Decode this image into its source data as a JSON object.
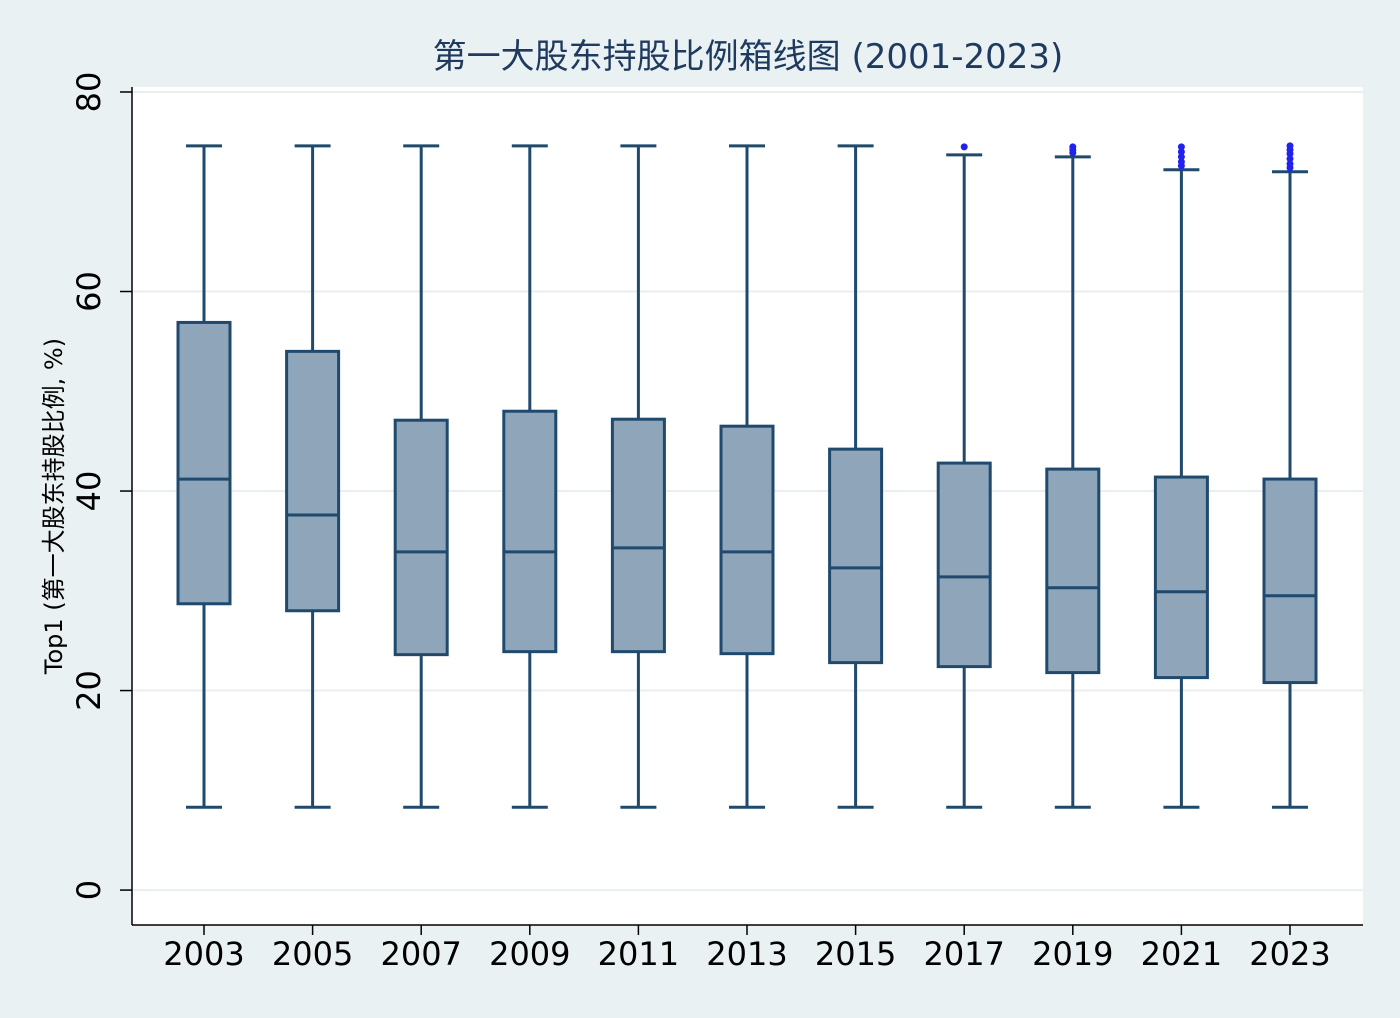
{
  "chart_data": {
    "type": "box",
    "title": "第一大股东持股比例箱线图 (2001-2023)",
    "xlabel": "",
    "ylabel": "Top1 (第一大股东持股比例, %)",
    "ylim": [
      -3.5,
      80.5
    ],
    "yticks": [
      0,
      20,
      40,
      60,
      80
    ],
    "grid": true,
    "legend": "none",
    "categories": [
      "2003",
      "2005",
      "2007",
      "2009",
      "2011",
      "2013",
      "2015",
      "2017",
      "2019",
      "2021",
      "2023"
    ],
    "boxes": [
      {
        "year": "2003",
        "whisker_low": 8.3,
        "q1": 28.7,
        "median": 41.2,
        "q3": 56.9,
        "whisker_high": 74.6,
        "outliers": []
      },
      {
        "year": "2005",
        "whisker_low": 8.3,
        "q1": 28.0,
        "median": 37.6,
        "q3": 54.0,
        "whisker_high": 74.6,
        "outliers": []
      },
      {
        "year": "2007",
        "whisker_low": 8.3,
        "q1": 23.6,
        "median": 33.9,
        "q3": 47.1,
        "whisker_high": 74.6,
        "outliers": []
      },
      {
        "year": "2009",
        "whisker_low": 8.3,
        "q1": 23.9,
        "median": 33.9,
        "q3": 48.0,
        "whisker_high": 74.6,
        "outliers": []
      },
      {
        "year": "2011",
        "whisker_low": 8.3,
        "q1": 23.9,
        "median": 34.3,
        "q3": 47.2,
        "whisker_high": 74.6,
        "outliers": []
      },
      {
        "year": "2013",
        "whisker_low": 8.3,
        "q1": 23.7,
        "median": 33.9,
        "q3": 46.5,
        "whisker_high": 74.6,
        "outliers": []
      },
      {
        "year": "2015",
        "whisker_low": 8.3,
        "q1": 22.8,
        "median": 32.3,
        "q3": 44.2,
        "whisker_high": 74.6,
        "outliers": []
      },
      {
        "year": "2017",
        "whisker_low": 8.3,
        "q1": 22.4,
        "median": 31.4,
        "q3": 42.8,
        "whisker_high": 73.7,
        "outliers": [
          74.5
        ]
      },
      {
        "year": "2019",
        "whisker_low": 8.3,
        "q1": 21.8,
        "median": 30.3,
        "q3": 42.2,
        "whisker_high": 73.5,
        "outliers": [
          73.9,
          74.2,
          74.5
        ]
      },
      {
        "year": "2021",
        "whisker_low": 8.3,
        "q1": 21.3,
        "median": 29.9,
        "q3": 41.4,
        "whisker_high": 72.2,
        "outliers": [
          72.6,
          73.0,
          73.5,
          74.0,
          74.5
        ]
      },
      {
        "year": "2023",
        "whisker_low": 8.3,
        "q1": 20.8,
        "median": 29.5,
        "q3": 41.2,
        "whisker_high": 72.0,
        "outliers": [
          72.4,
          72.8,
          73.3,
          73.8,
          74.2,
          74.6
        ]
      }
    ],
    "colors": {
      "box_fill": "#8ea5ba",
      "box_stroke": "#1f4a6e",
      "outlier": "#2222ee",
      "plot_bg": "#ffffff",
      "page_bg": "#eaf1f3",
      "grid": "#e8eef1",
      "title": "#1f3a5f"
    }
  }
}
